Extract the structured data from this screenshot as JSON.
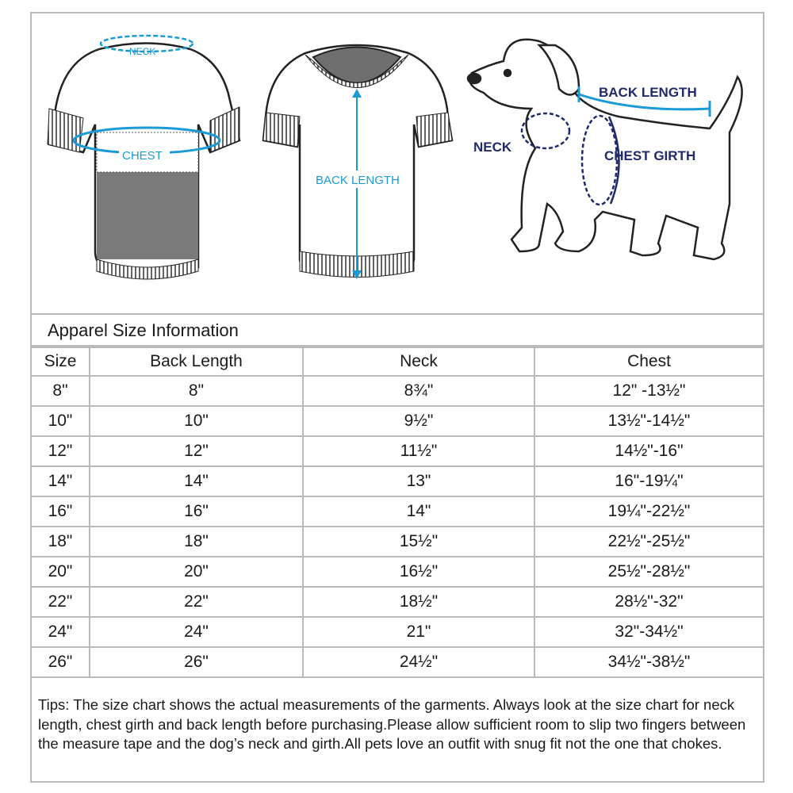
{
  "illustrations": {
    "back_view": {
      "neck_label": "NECK",
      "chest_label": "CHEST"
    },
    "front_view": {
      "back_length_label": "BACK LENGTH"
    },
    "dog": {
      "back_length_label": "BACK LENGTH",
      "neck_label": "NECK",
      "chest_girth_label": "CHEST GIRTH"
    },
    "colors": {
      "garment_measure": "#1a9ad6",
      "dog_measure": "#1f2a6b"
    }
  },
  "table": {
    "title": "Apparel Size Information",
    "headers": [
      "Size",
      "Back Length",
      "Neck",
      "Chest"
    ],
    "rows": [
      [
        "8\"",
        "8\"",
        "8¾\"",
        "12\" -13½\""
      ],
      [
        "10\"",
        "10\"",
        "9½\"",
        "13½\"-14½\""
      ],
      [
        "12\"",
        "12\"",
        "11½\"",
        "14½\"-16\""
      ],
      [
        "14\"",
        "14\"",
        "13\"",
        "16\"-19¼\""
      ],
      [
        "16\"",
        "16\"",
        "14\"",
        "19¼\"-22½\""
      ],
      [
        "18\"",
        "18\"",
        "15½\"",
        "22½\"-25½\""
      ],
      [
        "20\"",
        "20\"",
        "16½\"",
        "25½\"-28½\""
      ],
      [
        "22\"",
        "22\"",
        "18½\"",
        "28½\"-32\""
      ],
      [
        "24\"",
        "24\"",
        "21\"",
        "32\"-34½\""
      ],
      [
        "26\"",
        "26\"",
        "24½\"",
        "34½\"-38½\""
      ]
    ]
  },
  "tips": "Tips:  The size chart shows the actual measurements of the  garments.  Always look at the size chart for neck length, chest girth and back length before purchasing.Please allow sufficient room to slip two fingers between the measure tape and the dog’s neck and girth.All pets love an outfit with snug fit not the one that chokes."
}
